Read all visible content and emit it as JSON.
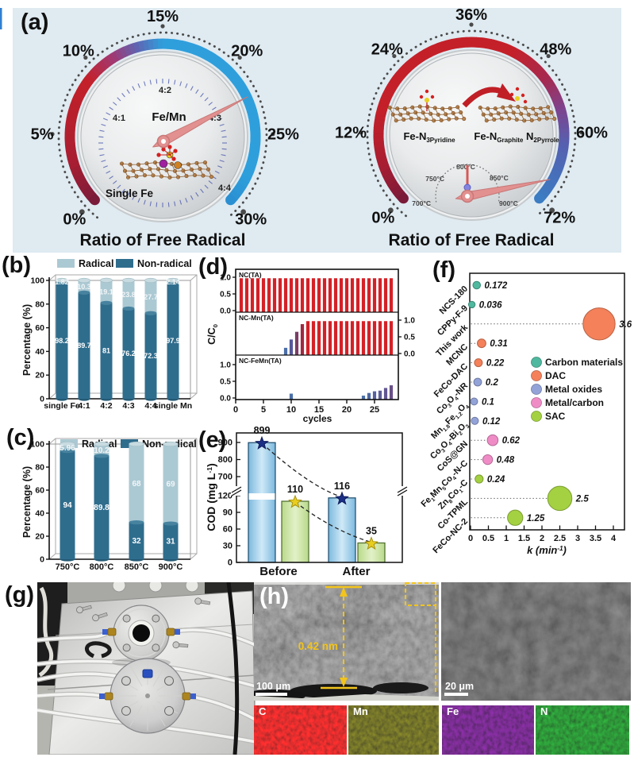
{
  "figure": {
    "panel_letters": {
      "a": "(a)",
      "b": "(b)",
      "c": "(c)",
      "d": "(d)",
      "e": "(e)",
      "f": "(f)",
      "g": "(g)",
      "h": "(h)"
    }
  },
  "panel_a": {
    "bg": "#dfeaf1",
    "gauges": [
      {
        "title": "Ratio of Free Radical",
        "ticks": [
          "0%",
          "5%",
          "10%",
          "15%",
          "20%",
          "25%",
          "30%"
        ],
        "pct_max": 30,
        "needle_pct": 22,
        "arc_stops": [
          [
            0,
            "#7a1b3a"
          ],
          [
            0.1,
            "#a81e32"
          ],
          [
            0.3,
            "#c42029"
          ],
          [
            0.38,
            "#a03a74"
          ],
          [
            0.44,
            "#5f64b2"
          ],
          [
            0.5,
            "#2f9fdc"
          ],
          [
            0.93,
            "#2f9fdc"
          ],
          [
            1,
            "#2b90d2"
          ]
        ],
        "center_label": "Fe/Mn",
        "dial_labels": [
          "4:1",
          "4:2",
          "4:3",
          "4:4"
        ],
        "bottom_label": "Single Fe"
      },
      {
        "title": "Ratio of Free Radical",
        "ticks": [
          "0%",
          "12%",
          "24%",
          "36%",
          "48%",
          "60%",
          "72%"
        ],
        "pct_max": 72,
        "needle_pct": 64,
        "arc_stops": [
          [
            0,
            "#7a1b3a"
          ],
          [
            0.09,
            "#a81e32"
          ],
          [
            0.22,
            "#c42029"
          ],
          [
            0.6,
            "#c42029"
          ],
          [
            0.7,
            "#a62a50"
          ],
          [
            0.78,
            "#7c4490"
          ],
          [
            0.86,
            "#5560b0"
          ],
          [
            1,
            "#3b7cc2"
          ]
        ],
        "molecule_labels": [
          "Fe-N_{3Pyridine}",
          "Fe-N_{Graphite} N_{2Pyrrole}"
        ],
        "mini_dial_labels": [
          "700°C",
          "750°C",
          "800°C",
          "850°C",
          "900°C"
        ]
      }
    ]
  },
  "chart_data": [
    {
      "panel": "b",
      "type": "bar",
      "stacked": true,
      "categories": [
        "single Fe",
        "4:1",
        "4:2",
        "4:3",
        "4:4",
        "single Mn"
      ],
      "series": [
        {
          "name": "Non-radical",
          "color": "#2f6d8d",
          "values": [
            98.2,
            89.7,
            81,
            76.2,
            72.3,
            97.9
          ],
          "labels": [
            "98.2",
            "89.7",
            "81",
            "76.2",
            "72.3",
            "97.9"
          ]
        },
        {
          "name": "Radical",
          "color": "#abc9d3",
          "values": [
            1.82,
            10.3,
            19.1,
            23.8,
            27.7,
            2.14
          ],
          "labels": [
            "1.82",
            "10.3",
            "19.1",
            "23.8",
            "27.7",
            "2.14"
          ]
        }
      ],
      "ylabel": "Percentage (%)",
      "ylim": [
        0,
        100
      ],
      "yticks": [
        0,
        20,
        40,
        60,
        80,
        100
      ],
      "legend_position": "top"
    },
    {
      "panel": "c",
      "type": "bar",
      "stacked": true,
      "categories": [
        "750°C",
        "800°C",
        "850°C",
        "900°C"
      ],
      "series": [
        {
          "name": "Non-radical",
          "color": "#2f6d8d",
          "values": [
            94,
            89.8,
            32,
            31
          ],
          "labels": [
            "94",
            "89.8",
            "32",
            "31"
          ]
        },
        {
          "name": "Radical",
          "color": "#abc9d3",
          "values": [
            5.96,
            10.2,
            68,
            69
          ],
          "labels": [
            "5.96",
            "10.2",
            "68",
            "69"
          ]
        }
      ],
      "ylabel": "Percentage (%)",
      "ylim": [
        0,
        100
      ],
      "yticks": [
        0,
        20,
        40,
        60,
        80,
        100
      ],
      "legend_position": "top"
    },
    {
      "panel": "d",
      "type": "bar",
      "xlabel": "cycles",
      "ylabel": "C/C_{0}",
      "xticks": [
        0,
        5,
        10,
        15,
        20,
        25
      ],
      "xlim": [
        0,
        29
      ],
      "yticks": [
        "0.0",
        "0.5",
        "1.0"
      ],
      "ylim": [
        0,
        1.1
      ],
      "subplots": [
        {
          "label": "NC(TA)",
          "axis_side": "left",
          "runs": [
            {
              "c": [
                1,
                28
              ],
              "v": 0.97,
              "col": "#d42127"
            }
          ]
        },
        {
          "label": "NC-Mn(TA)",
          "axis_side": "right",
          "runs": [
            {
              "c": [
                9,
                9
              ],
              "v": 0.17,
              "col": "#4a6fa8"
            },
            {
              "c": [
                10,
                10
              ],
              "v": 0.42,
              "col": "#56589a"
            },
            {
              "c": [
                11,
                11
              ],
              "v": 0.65,
              "col": "#7a3c64"
            },
            {
              "c": [
                12,
                12
              ],
              "v": 0.88,
              "col": "#a02840"
            },
            {
              "c": [
                13,
                28
              ],
              "v": 0.97,
              "col": "#d42127"
            }
          ]
        },
        {
          "label": "NC-FeMn(TA)",
          "axis_side": "left",
          "runs": [
            {
              "c": [
                10,
                10
              ],
              "v": 0.13,
              "col": "#4a6fa8"
            },
            {
              "c": [
                23,
                23
              ],
              "v": 0.07,
              "col": "#4a6fa8"
            },
            {
              "c": [
                24,
                24
              ],
              "v": 0.15,
              "col": "#4f6aa4"
            },
            {
              "c": [
                25,
                25
              ],
              "v": 0.2,
              "col": "#56619e"
            },
            {
              "c": [
                26,
                26
              ],
              "v": 0.22,
              "col": "#5c5c98"
            },
            {
              "c": [
                27,
                27
              ],
              "v": 0.3,
              "col": "#625690"
            },
            {
              "c": [
                28,
                28
              ],
              "v": 0.38,
              "col": "#685088"
            }
          ]
        }
      ]
    },
    {
      "panel": "e",
      "type": "bar",
      "ylabel": "COD (mg L^{-1})",
      "group_labels": [
        "Before",
        "After"
      ],
      "yticks_lower": [
        "0",
        "30",
        "60",
        "90",
        "120"
      ],
      "yticks_upper": [
        "700",
        "800",
        "900"
      ],
      "broken_axis": true,
      "series": [
        {
          "color": "url(#blueBar)",
          "edge": "#1a4a6a",
          "values": [
            899,
            116
          ],
          "value_labels": [
            "899",
            "116"
          ],
          "star_color": "#1c2f86",
          "star_edge": "#101c5c"
        },
        {
          "color": "url(#greenBar)",
          "edge": "#4a6a2a",
          "values": [
            110,
            35
          ],
          "value_labels": [
            "110",
            "35"
          ],
          "star_color": "#e9cd1f",
          "star_edge": "#a8920e"
        }
      ]
    },
    {
      "panel": "f",
      "type": "scatter",
      "xlabel": "k (min^{-1})",
      "xticks": [
        "0",
        "0.5",
        "1",
        "1.5",
        "2",
        "2.5",
        "3",
        "3.5",
        "4"
      ],
      "xlim": [
        0,
        4.2
      ],
      "points": [
        {
          "label": "NCS-180",
          "k": 0.172,
          "k_label": "0.172",
          "group": "Carbon materials"
        },
        {
          "label": "CPPy-F-9",
          "k": 0.036,
          "k_label": "0.036",
          "group": "Carbon materials"
        },
        {
          "label": "This work",
          "k": 3.6,
          "k_label": "3.6",
          "group": "DAC"
        },
        {
          "label": "MCNC",
          "k": 0.31,
          "k_label": "0.31",
          "group": "DAC"
        },
        {
          "label": "FeCo-DAC",
          "k": 0.22,
          "k_label": "0.22",
          "group": "DAC"
        },
        {
          "label": "Co_{3}O_{4}-NR",
          "k": 0.2,
          "k_label": "0.2",
          "group": "Metal oxides"
        },
        {
          "label": "Mn_{1.8}Fe_{1.2}O_{4}",
          "k": 0.1,
          "k_label": "0.1",
          "group": "Metal oxides"
        },
        {
          "label": "Co_{3}O_{4}-Bi_{2}O_{3}",
          "k": 0.12,
          "k_label": "0.12",
          "group": "Metal oxides"
        },
        {
          "label": "CoS@GN",
          "k": 0.62,
          "k_label": "0.62",
          "group": "Metal/carbon"
        },
        {
          "label": "Fe_{1}Mn_{5}Co_{4}-N-C",
          "k": 0.48,
          "k_label": "0.48",
          "group": "Metal/carbon"
        },
        {
          "label": "Zn_{8}Co_{1}-C",
          "k": 0.24,
          "k_label": "0.24",
          "group": "SAC"
        },
        {
          "label": "Co-TPML",
          "k": 2.5,
          "k_label": "2.5",
          "group": "SAC"
        },
        {
          "label": "FeCo-NC-2",
          "k": 1.25,
          "k_label": "1.25",
          "group": "SAC"
        }
      ],
      "legend": [
        {
          "name": "Carbon materials",
          "color": "#4fb89e"
        },
        {
          "name": "DAC",
          "color": "#f4815a"
        },
        {
          "name": "Metal oxides",
          "color": "#93a3d8"
        },
        {
          "name": "Metal/carbon",
          "color": "#ef8cc6"
        },
        {
          "name": "SAC",
          "color": "#a4d141"
        }
      ]
    }
  ],
  "panel_h": {
    "annotations": {
      "thickness_label": "0.42 nm",
      "scalebar_left": "100 μm",
      "scalebar_right": "20 μm"
    },
    "map_labels": [
      "C",
      "Mn",
      "Fe",
      "N"
    ]
  }
}
